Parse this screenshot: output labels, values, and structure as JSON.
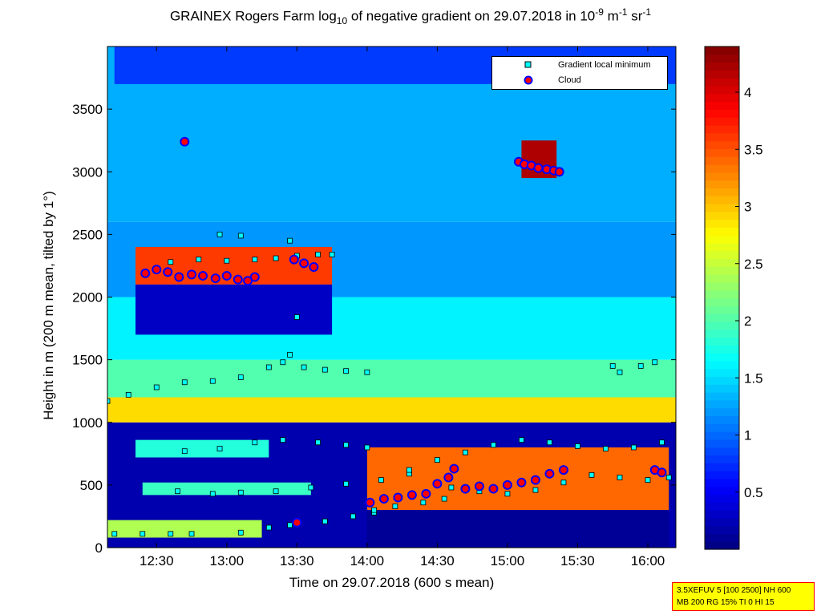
{
  "title": {
    "prefix": "GRAINEX Rogers Farm log",
    "sub": "10",
    "mid": " of negative gradient on 29.07.2018 in 10",
    "sup1": "-9",
    "unit1": " m",
    "sup2": "-1",
    "unit2": " sr",
    "sup3": "-1"
  },
  "legend": {
    "items": [
      {
        "label": "Gradient local minimum"
      },
      {
        "label": "Cloud"
      }
    ]
  },
  "info_box": {
    "line1": "3.5XEFUV 5 [100 2500] NH 600",
    "line2": "MB 200 RG 15% TI 0 HI 15"
  },
  "colors": {
    "background_low": "#00008f",
    "gradient_min_marker": "#00ffff",
    "cloud_marker_fill": "#ff0000",
    "cloud_marker_edge": "#0000ff"
  },
  "chart_data": {
    "type": "heatmap",
    "xlabel": "Time on 29.07.2018 (600 s mean)",
    "ylabel": "Height in m (200 m mean, tilted by 1°)",
    "x_range_hours": [
      12.15,
      16.2
    ],
    "xlim": [
      "12:09",
      "16:12"
    ],
    "ylim": [
      0,
      4000
    ],
    "x_ticks": [
      {
        "label": "12:30",
        "value": 12.5
      },
      {
        "label": "13:00",
        "value": 13.0
      },
      {
        "label": "13:30",
        "value": 13.5
      },
      {
        "label": "14:00",
        "value": 14.0
      },
      {
        "label": "14:30",
        "value": 14.5
      },
      {
        "label": "15:00",
        "value": 15.0
      },
      {
        "label": "15:30",
        "value": 15.5
      },
      {
        "label": "16:00",
        "value": 16.0
      }
    ],
    "y_ticks": [
      0,
      500,
      1000,
      1500,
      2000,
      2500,
      3000,
      3500
    ],
    "colorbar": {
      "range": [
        0,
        4.4
      ],
      "ticks": [
        "0.5",
        "1",
        "1.5",
        "2",
        "2.5",
        "3",
        "3.5",
        "4"
      ],
      "tick_values": [
        0.5,
        1,
        1.5,
        2,
        2.5,
        3,
        3.5,
        4
      ],
      "colormap": "jet"
    },
    "value_bands": [
      {
        "t_start": 12.15,
        "t_end": 16.2,
        "h_start": 0,
        "h_end": 1000,
        "value": 0.2
      },
      {
        "t_start": 12.15,
        "t_end": 16.2,
        "h_start": 1000,
        "h_end": 1200,
        "value": 2.9
      },
      {
        "t_start": 12.15,
        "t_end": 16.2,
        "h_start": 1200,
        "h_end": 1500,
        "value": 2.0
      },
      {
        "t_start": 12.15,
        "t_end": 16.2,
        "h_start": 1500,
        "h_end": 2000,
        "value": 1.6
      },
      {
        "t_start": 12.15,
        "t_end": 16.2,
        "h_start": 2000,
        "h_end": 2600,
        "value": 1.2
      },
      {
        "t_start": 12.15,
        "t_end": 16.2,
        "h_start": 2600,
        "h_end": 4000,
        "value": 1.3
      },
      {
        "t_start": 12.15,
        "t_end": 13.25,
        "h_start": 80,
        "h_end": 220,
        "value": 2.4
      },
      {
        "t_start": 12.35,
        "t_end": 13.3,
        "h_start": 720,
        "h_end": 860,
        "value": 1.8
      },
      {
        "t_start": 12.4,
        "t_end": 13.6,
        "h_start": 420,
        "h_end": 520,
        "value": 1.9
      },
      {
        "t_start": 14.0,
        "t_end": 16.15,
        "h_start": 300,
        "h_end": 800,
        "value": 3.4
      },
      {
        "t_start": 14.0,
        "t_end": 16.15,
        "h_start": 0,
        "h_end": 300,
        "value": 0.1
      },
      {
        "t_start": 12.35,
        "t_end": 13.75,
        "h_start": 2100,
        "h_end": 2400,
        "value": 3.6
      },
      {
        "t_start": 12.35,
        "t_end": 13.75,
        "h_start": 1700,
        "h_end": 2100,
        "value": 0.3
      },
      {
        "t_start": 15.1,
        "t_end": 15.35,
        "h_start": 2950,
        "h_end": 3250,
        "value": 4.2
      },
      {
        "t_start": 12.2,
        "t_end": 16.2,
        "h_start": 3700,
        "h_end": 4000,
        "value": 0.8
      }
    ],
    "series": [
      {
        "name": "Gradient local minimum",
        "points": [
          [
            12.15,
            1170
          ],
          [
            12.3,
            1220
          ],
          [
            12.5,
            1280
          ],
          [
            12.7,
            1320
          ],
          [
            12.9,
            1330
          ],
          [
            13.1,
            1360
          ],
          [
            13.3,
            1440
          ],
          [
            13.4,
            1480
          ],
          [
            13.45,
            1540
          ],
          [
            13.55,
            1440
          ],
          [
            13.7,
            1420
          ],
          [
            13.85,
            1410
          ],
          [
            14.0,
            1400
          ],
          [
            12.2,
            110
          ],
          [
            12.4,
            110
          ],
          [
            12.6,
            110
          ],
          [
            12.75,
            110
          ],
          [
            13.1,
            120
          ],
          [
            13.3,
            160
          ],
          [
            13.45,
            180
          ],
          [
            13.7,
            210
          ],
          [
            13.9,
            250
          ],
          [
            14.05,
            280
          ],
          [
            12.65,
            450
          ],
          [
            12.9,
            430
          ],
          [
            13.1,
            440
          ],
          [
            13.35,
            450
          ],
          [
            13.6,
            480
          ],
          [
            13.85,
            510
          ],
          [
            14.1,
            540
          ],
          [
            14.3,
            590
          ],
          [
            12.7,
            770
          ],
          [
            12.95,
            790
          ],
          [
            13.2,
            840
          ],
          [
            13.4,
            860
          ],
          [
            13.65,
            840
          ],
          [
            13.85,
            820
          ],
          [
            14.0,
            800
          ],
          [
            14.3,
            620
          ],
          [
            14.5,
            700
          ],
          [
            14.7,
            760
          ],
          [
            14.9,
            820
          ],
          [
            15.1,
            860
          ],
          [
            15.3,
            840
          ],
          [
            15.5,
            810
          ],
          [
            15.7,
            790
          ],
          [
            15.9,
            800
          ],
          [
            16.1,
            840
          ],
          [
            14.6,
            480
          ],
          [
            14.8,
            450
          ],
          [
            15.0,
            430
          ],
          [
            15.2,
            460
          ],
          [
            15.4,
            520
          ],
          [
            15.6,
            580
          ],
          [
            15.8,
            560
          ],
          [
            16.0,
            540
          ],
          [
            16.15,
            560
          ],
          [
            14.05,
            300
          ],
          [
            14.2,
            330
          ],
          [
            14.4,
            360
          ],
          [
            14.55,
            390
          ],
          [
            15.75,
            1450
          ],
          [
            15.8,
            1400
          ],
          [
            15.95,
            1450
          ],
          [
            16.05,
            1480
          ],
          [
            12.6,
            2280
          ],
          [
            12.8,
            2300
          ],
          [
            13.0,
            2290
          ],
          [
            13.2,
            2300
          ],
          [
            13.35,
            2310
          ],
          [
            13.5,
            2330
          ],
          [
            13.65,
            2340
          ],
          [
            13.75,
            2340
          ],
          [
            12.95,
            2500
          ],
          [
            13.1,
            2490
          ],
          [
            13.45,
            2450
          ],
          [
            13.5,
            1840
          ]
        ]
      },
      {
        "name": "Cloud",
        "points": [
          [
            12.42,
            2190
          ],
          [
            12.5,
            2220
          ],
          [
            12.58,
            2200
          ],
          [
            12.66,
            2160
          ],
          [
            12.75,
            2180
          ],
          [
            12.83,
            2170
          ],
          [
            12.92,
            2150
          ],
          [
            13.0,
            2170
          ],
          [
            13.08,
            2140
          ],
          [
            13.15,
            2130
          ],
          [
            13.2,
            2160
          ],
          [
            12.7,
            3240
          ],
          [
            13.48,
            2300
          ],
          [
            13.55,
            2270
          ],
          [
            13.62,
            2240
          ],
          [
            15.08,
            3080
          ],
          [
            15.12,
            3060
          ],
          [
            15.17,
            3050
          ],
          [
            15.22,
            3030
          ],
          [
            15.28,
            3020
          ],
          [
            15.33,
            3010
          ],
          [
            15.37,
            3000
          ],
          [
            14.02,
            360
          ],
          [
            14.12,
            390
          ],
          [
            14.22,
            400
          ],
          [
            14.32,
            420
          ],
          [
            14.42,
            430
          ],
          [
            14.5,
            510
          ],
          [
            14.58,
            560
          ],
          [
            14.62,
            630
          ],
          [
            14.7,
            470
          ],
          [
            14.8,
            490
          ],
          [
            14.9,
            470
          ],
          [
            15.0,
            500
          ],
          [
            15.1,
            520
          ],
          [
            15.2,
            540
          ],
          [
            15.3,
            590
          ],
          [
            15.4,
            620
          ],
          [
            16.05,
            620
          ],
          [
            16.1,
            600
          ],
          [
            13.5,
            200
          ]
        ]
      }
    ]
  }
}
